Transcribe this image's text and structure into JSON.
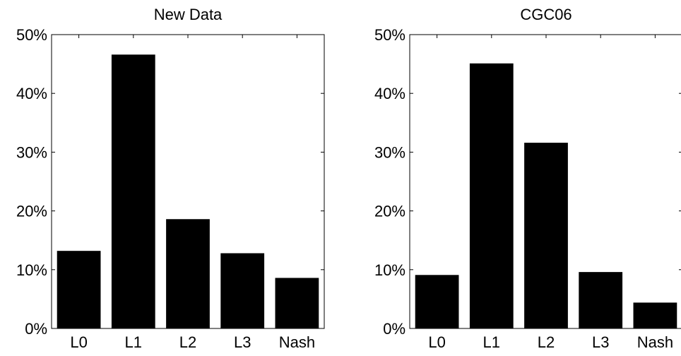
{
  "chart_data": [
    {
      "type": "bar",
      "title": "New Data",
      "categories": [
        "L0",
        "L1",
        "L2",
        "L3",
        "Nash"
      ],
      "values": [
        13.2,
        46.6,
        18.6,
        12.8,
        8.6
      ],
      "ylim": [
        0,
        50
      ],
      "yticks": [
        "0%",
        "10%",
        "20%",
        "30%",
        "40%",
        "50%"
      ],
      "grid": false,
      "colors": {
        "bar": "#000000",
        "axis": "#000000"
      }
    },
    {
      "type": "bar",
      "title": "CGC06",
      "categories": [
        "L0",
        "L1",
        "L2",
        "L3",
        "Nash"
      ],
      "values": [
        9.1,
        45.1,
        31.6,
        9.6,
        4.4
      ],
      "ylim": [
        0,
        50
      ],
      "yticks": [
        "0%",
        "10%",
        "20%",
        "30%",
        "40%",
        "50%"
      ],
      "grid": false,
      "colors": {
        "bar": "#000000",
        "axis": "#000000"
      }
    }
  ]
}
